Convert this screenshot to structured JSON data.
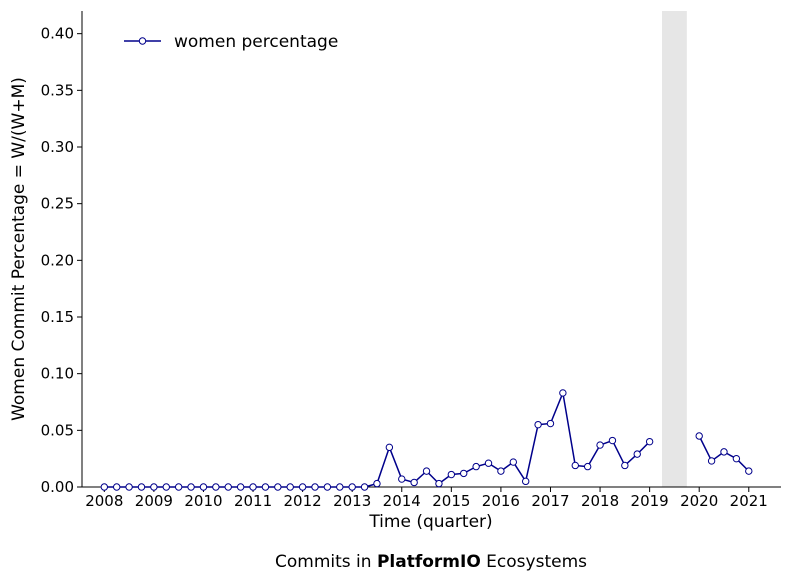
{
  "chart_data": {
    "type": "line",
    "ylabel": "Women Commit Percentage = W/(W+M)",
    "xlabel": "Time (quarter)",
    "caption": {
      "prefix": "Commits in ",
      "highlight": "PlatformIO",
      "suffix": " Ecosystems"
    },
    "xlim": [
      2007.55,
      2021.65
    ],
    "ylim": [
      0,
      0.42
    ],
    "x_ticks": [
      2008,
      2009,
      2010,
      2011,
      2012,
      2013,
      2014,
      2015,
      2016,
      2017,
      2018,
      2019,
      2020,
      2021
    ],
    "y_ticks": [
      0.0,
      0.05,
      0.1,
      0.15,
      0.2,
      0.25,
      0.3,
      0.35,
      0.4
    ],
    "y_tick_labels": [
      "0.00",
      "0.05",
      "0.10",
      "0.15",
      "0.20",
      "0.25",
      "0.30",
      "0.35",
      "0.40"
    ],
    "legend": {
      "placement": "top-left"
    },
    "shaded_region": {
      "x": [
        2019.25,
        2019.75
      ],
      "color": "#e6e6e6"
    },
    "grid": false,
    "colors": {
      "series": "#00008b"
    },
    "series": [
      {
        "name": "women percentage",
        "segments": [
          [
            [
              2008.0,
              0.0
            ],
            [
              2008.25,
              0.0
            ],
            [
              2008.5,
              0.0
            ],
            [
              2008.75,
              0.0
            ],
            [
              2009.0,
              0.0
            ],
            [
              2009.25,
              0.0
            ],
            [
              2009.5,
              0.0
            ],
            [
              2009.75,
              0.0
            ],
            [
              2010.0,
              0.0
            ],
            [
              2010.25,
              0.0
            ],
            [
              2010.5,
              0.0
            ],
            [
              2010.75,
              0.0
            ],
            [
              2011.0,
              0.0
            ],
            [
              2011.25,
              0.0
            ],
            [
              2011.5,
              0.0
            ],
            [
              2011.75,
              0.0
            ],
            [
              2012.0,
              0.0
            ],
            [
              2012.25,
              0.0
            ],
            [
              2012.5,
              0.0
            ],
            [
              2012.75,
              0.0
            ],
            [
              2013.0,
              0.0
            ],
            [
              2013.25,
              0.0
            ],
            [
              2013.5,
              0.003
            ],
            [
              2013.75,
              0.035
            ],
            [
              2014.0,
              0.007
            ],
            [
              2014.25,
              0.004
            ],
            [
              2014.5,
              0.014
            ],
            [
              2014.75,
              0.003
            ],
            [
              2015.0,
              0.011
            ],
            [
              2015.25,
              0.012
            ],
            [
              2015.5,
              0.018
            ],
            [
              2015.75,
              0.021
            ],
            [
              2016.0,
              0.014
            ],
            [
              2016.25,
              0.022
            ],
            [
              2016.5,
              0.005
            ],
            [
              2016.75,
              0.055
            ],
            [
              2017.0,
              0.056
            ],
            [
              2017.25,
              0.083
            ],
            [
              2017.5,
              0.019
            ],
            [
              2017.75,
              0.018
            ],
            [
              2018.0,
              0.037
            ],
            [
              2018.25,
              0.041
            ],
            [
              2018.5,
              0.019
            ],
            [
              2018.75,
              0.029
            ],
            [
              2019.0,
              0.04
            ]
          ],
          [
            [
              2020.0,
              0.045
            ],
            [
              2020.25,
              0.023
            ],
            [
              2020.5,
              0.031
            ],
            [
              2020.75,
              0.025
            ],
            [
              2021.0,
              0.014
            ]
          ]
        ]
      }
    ]
  }
}
